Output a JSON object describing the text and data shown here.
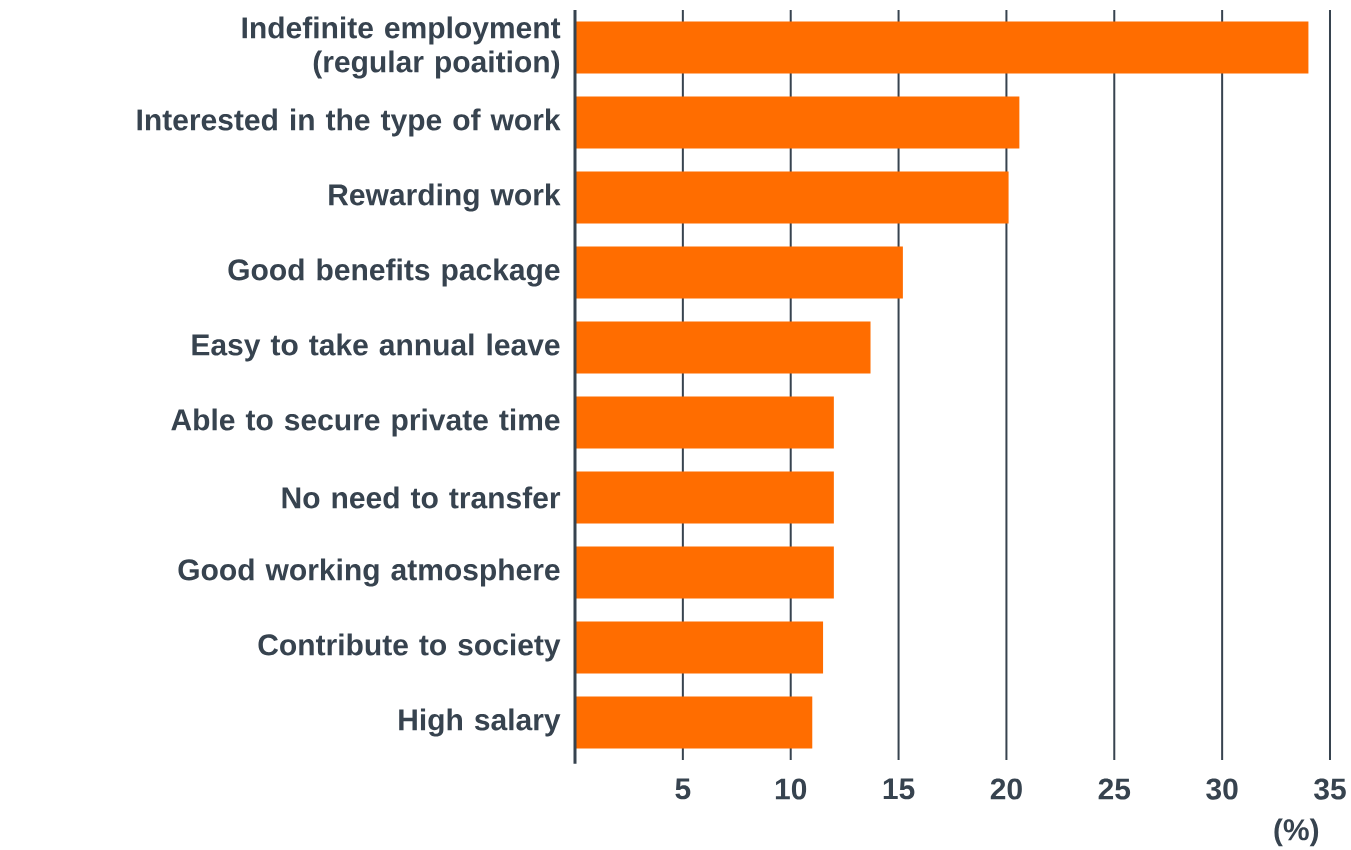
{
  "chart_data": {
    "type": "bar",
    "orientation": "horizontal",
    "categories": [
      "Indefinite employment (regular poaition)",
      "Interested in the type of work",
      "Rewarding work",
      "Good benefits package",
      "Easy to take annual leave",
      "Able to secure private time",
      "No need to transfer",
      "Good working atmosphere",
      "Contribute to society",
      "High salary"
    ],
    "values": [
      34,
      20.6,
      20.1,
      15.2,
      13.7,
      12,
      12,
      12,
      11.5,
      11
    ],
    "color": "#ff6d00",
    "xlim": [
      0,
      35
    ],
    "xticks": [
      5,
      10,
      15,
      20,
      25,
      30,
      35
    ],
    "grid": "x",
    "xlabel": "(%)"
  }
}
